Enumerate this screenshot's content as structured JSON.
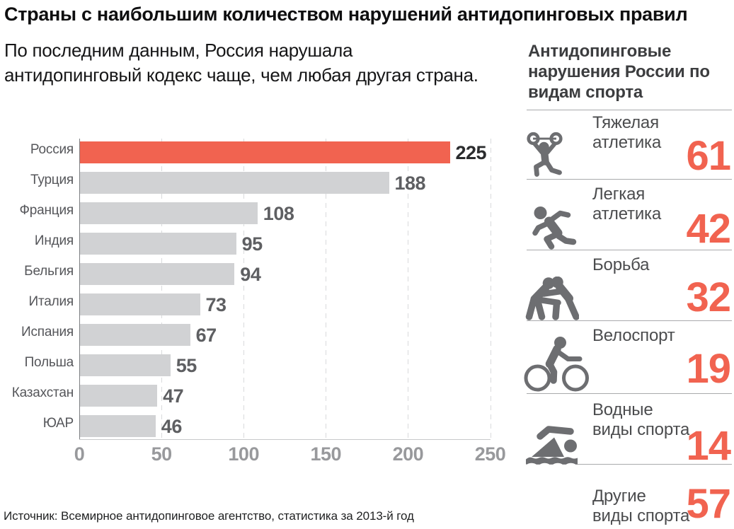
{
  "title": "Страны с наибольшим количеством нарушений антидопинговых правил",
  "subtitle": {
    "lines": [
      "По последним данным, Россия нарушала",
      "антидопинговый кодекс чаще, чем любая другая страна."
    ]
  },
  "source": "Источник: Всемирное антидопинговое агентство, статистика за 2013-й год",
  "colors": {
    "accent_red": "#f16350",
    "bar_gray": "#d1d2d4",
    "icon_gray": "#6d6e71"
  },
  "chart_data": {
    "type": "bar",
    "orientation": "horizontal",
    "categories": [
      "Россия",
      "Турция",
      "Франция",
      "Индия",
      "Бельгия",
      "Италия",
      "Испания",
      "Польша",
      "Казахстан",
      "ЮАР"
    ],
    "values": [
      225,
      188,
      108,
      95,
      94,
      73,
      67,
      55,
      47,
      46
    ],
    "highlight_category": "Россия",
    "xlim": [
      0,
      250
    ],
    "x_ticks": [
      0,
      50,
      100,
      150,
      200,
      250
    ],
    "grid": "dashed-vertical",
    "legend": "none"
  },
  "sidebar": {
    "heading_lines": [
      "Антидопинговые",
      "нарушения России по",
      "видам спорта"
    ],
    "items": [
      {
        "icon": "weightlifting-icon",
        "label_lines": [
          "Тяжелая",
          "атлетика"
        ],
        "value": 61
      },
      {
        "icon": "running-icon",
        "label_lines": [
          "Легкая",
          "атлетика"
        ],
        "value": 42
      },
      {
        "icon": "wrestling-icon",
        "label_lines": [
          "Борьба"
        ],
        "value": 32
      },
      {
        "icon": "cycling-icon",
        "label_lines": [
          "Велоспорт"
        ],
        "value": 19
      },
      {
        "icon": "swimming-icon",
        "label_lines": [
          "Водные",
          "виды спорта"
        ],
        "value": 14
      },
      {
        "icon": "",
        "label_lines": [
          "Другие",
          "виды спорта"
        ],
        "value": 57
      }
    ]
  }
}
